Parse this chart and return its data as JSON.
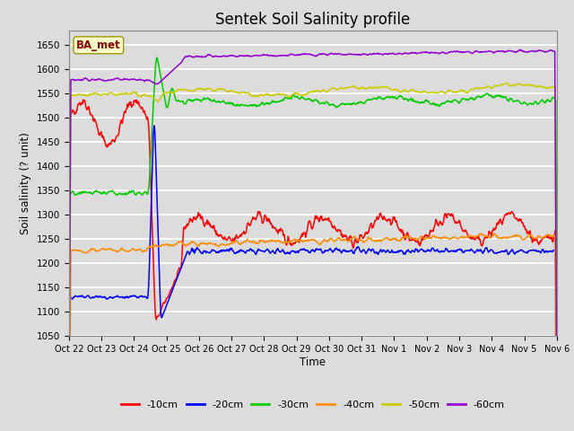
{
  "title": "Sentek Soil Salinity profile",
  "xlabel": "Time",
  "ylabel": "Soil salinity (? unit)",
  "ylim": [
    1050,
    1680
  ],
  "yticks": [
    1050,
    1100,
    1150,
    1200,
    1250,
    1300,
    1350,
    1400,
    1450,
    1500,
    1550,
    1600,
    1650
  ],
  "legend_labels": [
    "-10cm",
    "-20cm",
    "-30cm",
    "-40cm",
    "-50cm",
    "-60cm"
  ],
  "legend_colors": [
    "#ff0000",
    "#0000ff",
    "#00cc00",
    "#ff8c00",
    "#cccc00",
    "#9400d3"
  ],
  "annotation_text": "BA_met",
  "bg_color": "#dcdcdc",
  "plot_bg_color": "#dcdcdc",
  "title_fontsize": 12,
  "x_labels": [
    "Oct 22",
    "Oct 23",
    "Oct 24",
    "Oct 25",
    "Oct 26",
    "Oct 27",
    "Oct 28",
    "Oct 29",
    "Oct 30",
    "Oct 31",
    "Nov 1",
    "Nov 2",
    "Nov 3",
    "Nov 4",
    "Nov 5",
    "Nov 6"
  ],
  "total_days": 15,
  "n_points": 1000,
  "event_day": 2.45
}
